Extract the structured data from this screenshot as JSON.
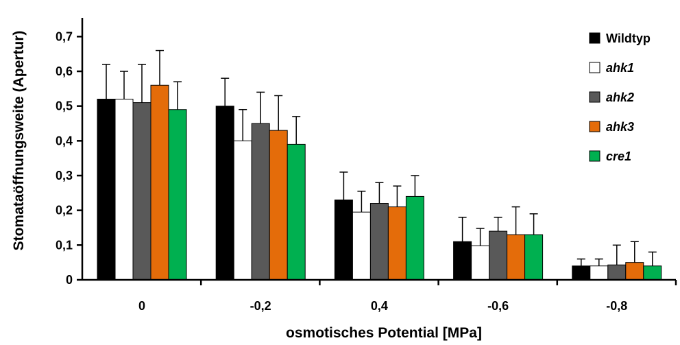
{
  "chart_data": {
    "type": "bar",
    "title": "",
    "xlabel": "osmotisches Potential [MPa]",
    "ylabel": "Stomataöffnungsweite (Apertur)",
    "categories": [
      "0",
      "-0,2",
      "0,4",
      "-0,6",
      "-0,8"
    ],
    "ylim": [
      0,
      0.75
    ],
    "yticks": [
      {
        "value": 0,
        "label": "0"
      },
      {
        "value": 0.1,
        "label": "0,1"
      },
      {
        "value": 0.2,
        "label": "0,2"
      },
      {
        "value": 0.3,
        "label": "0,3"
      },
      {
        "value": 0.4,
        "label": "0,4"
      },
      {
        "value": 0.5,
        "label": "0,5"
      },
      {
        "value": 0.6,
        "label": "0,6"
      },
      {
        "value": 0.7,
        "label": "0,7"
      }
    ],
    "legend_position": "top-right",
    "series": [
      {
        "name": "Wildtyp",
        "color": "#000000",
        "italic": false,
        "values": [
          0.52,
          0.5,
          0.23,
          0.11,
          0.04
        ],
        "errors": [
          0.1,
          0.08,
          0.08,
          0.07,
          0.02
        ]
      },
      {
        "name": "ahk1",
        "color": "#ffffff",
        "italic": true,
        "values": [
          0.52,
          0.4,
          0.195,
          0.098,
          0.04
        ],
        "errors": [
          0.08,
          0.09,
          0.06,
          0.05,
          0.02
        ]
      },
      {
        "name": "ahk2",
        "color": "#595959",
        "italic": true,
        "values": [
          0.51,
          0.45,
          0.22,
          0.14,
          0.043
        ],
        "errors": [
          0.11,
          0.09,
          0.06,
          0.04,
          0.057
        ]
      },
      {
        "name": "ahk3",
        "color": "#e46c0a",
        "italic": true,
        "values": [
          0.56,
          0.43,
          0.21,
          0.13,
          0.05
        ],
        "errors": [
          0.1,
          0.1,
          0.06,
          0.08,
          0.06
        ]
      },
      {
        "name": "cre1",
        "color": "#00b050",
        "italic": true,
        "values": [
          0.49,
          0.39,
          0.24,
          0.13,
          0.04
        ],
        "errors": [
          0.08,
          0.08,
          0.06,
          0.06,
          0.04
        ]
      }
    ]
  }
}
